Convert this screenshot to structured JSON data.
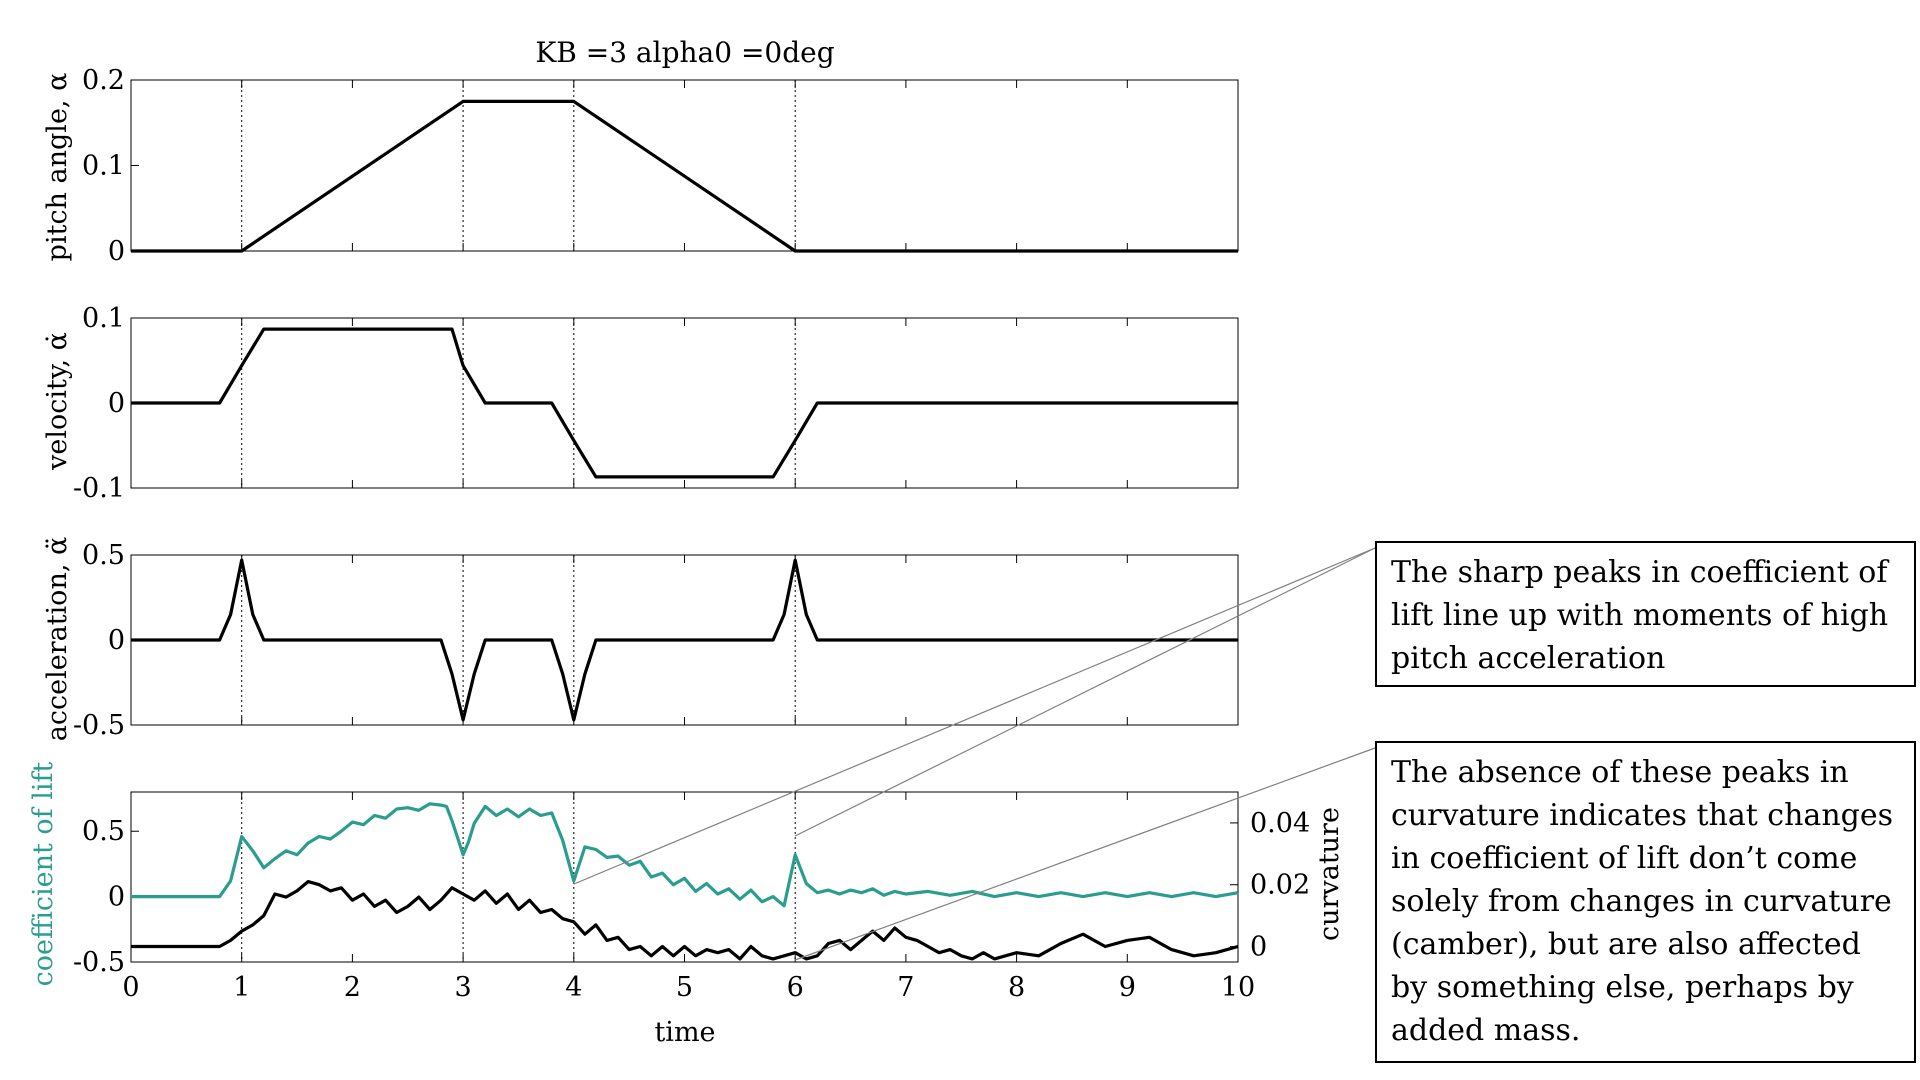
{
  "chart_data": [
    {
      "type": "line",
      "title": "KB =3 alpha0 =0deg",
      "ylabel": "pitch angle, α",
      "xlim": [
        0,
        10
      ],
      "ylim": [
        0,
        0.2
      ],
      "yticks": [
        "0",
        "0.1",
        "0.2"
      ],
      "series": [
        {
          "x": [
            0,
            1,
            3,
            4,
            6,
            10
          ],
          "values": [
            0,
            0,
            0.175,
            0.175,
            0,
            0
          ],
          "color": "#000000"
        }
      ]
    },
    {
      "type": "line",
      "ylabel": "velocity, α̇",
      "xlim": [
        0,
        10
      ],
      "ylim": [
        -0.1,
        0.1
      ],
      "yticks": [
        "-0.1",
        "0",
        "0.1"
      ],
      "series": [
        {
          "x": [
            0,
            0.8,
            1,
            1.2,
            2.9,
            3,
            3.2,
            3.8,
            4,
            4.2,
            5.8,
            6,
            6.2,
            10
          ],
          "values": [
            0,
            0,
            0.044,
            0.087,
            0.087,
            0.044,
            0,
            0,
            -0.044,
            -0.087,
            -0.087,
            -0.044,
            0,
            0
          ],
          "color": "#000000"
        }
      ]
    },
    {
      "type": "line",
      "ylabel": "acceleration, α̈",
      "xlim": [
        0,
        10
      ],
      "ylim": [
        -0.5,
        0.5
      ],
      "yticks": [
        "-0.5",
        "0",
        "0.5"
      ],
      "series": [
        {
          "x": [
            0,
            0.8,
            0.9,
            1,
            1.1,
            1.2,
            2.8,
            2.9,
            3,
            3.1,
            3.2,
            3.8,
            3.9,
            4,
            4.1,
            4.2,
            5.8,
            5.9,
            6,
            6.1,
            6.2,
            10
          ],
          "values": [
            0,
            0,
            0.15,
            0.47,
            0.15,
            0,
            0,
            -0.2,
            -0.47,
            -0.2,
            0,
            0,
            -0.2,
            -0.47,
            -0.2,
            0,
            0,
            0.15,
            0.47,
            0.15,
            0,
            0
          ],
          "color": "#000000"
        }
      ]
    },
    {
      "type": "line",
      "xlabel": "time",
      "ylabel": "coefficient of lift",
      "ylabel_right": "curvature",
      "xlim": [
        0,
        10
      ],
      "ylim": [
        -0.5,
        0.8
      ],
      "ylim_right": [
        -0.005,
        0.05
      ],
      "yticks": [
        "-0.5",
        "0",
        "0.5"
      ],
      "yticks_right": [
        "0",
        "0.02",
        "0.04"
      ],
      "xticks": [
        "0",
        "1",
        "2",
        "3",
        "4",
        "5",
        "6",
        "7",
        "8",
        "9",
        "10"
      ],
      "series": [
        {
          "axis": "left",
          "color": "#2a9d8f",
          "x": [
            0,
            0.8,
            0.9,
            1,
            1.1,
            1.2,
            1.3,
            1.4,
            1.5,
            1.6,
            1.7,
            1.8,
            1.9,
            2,
            2.1,
            2.2,
            2.3,
            2.4,
            2.5,
            2.6,
            2.7,
            2.8,
            2.85,
            2.9,
            2.95,
            3,
            3.05,
            3.1,
            3.2,
            3.3,
            3.4,
            3.5,
            3.6,
            3.7,
            3.8,
            3.9,
            4,
            4.1,
            4.2,
            4.3,
            4.4,
            4.5,
            4.6,
            4.7,
            4.8,
            4.9,
            5,
            5.1,
            5.2,
            5.3,
            5.4,
            5.5,
            5.6,
            5.7,
            5.8,
            5.9,
            6,
            6.1,
            6.2,
            6.3,
            6.4,
            6.5,
            6.6,
            6.7,
            6.8,
            6.9,
            7,
            7.2,
            7.4,
            7.6,
            7.8,
            8,
            8.2,
            8.4,
            8.6,
            8.8,
            9,
            9.2,
            9.4,
            9.6,
            9.8,
            10
          ],
          "values": [
            0,
            0,
            0.12,
            0.46,
            0.35,
            0.22,
            0.29,
            0.35,
            0.32,
            0.41,
            0.46,
            0.44,
            0.5,
            0.57,
            0.55,
            0.62,
            0.6,
            0.67,
            0.68,
            0.66,
            0.71,
            0.7,
            0.69,
            0.58,
            0.45,
            0.32,
            0.42,
            0.56,
            0.69,
            0.62,
            0.67,
            0.61,
            0.67,
            0.62,
            0.64,
            0.43,
            0.12,
            0.38,
            0.36,
            0.3,
            0.31,
            0.24,
            0.27,
            0.15,
            0.18,
            0.09,
            0.14,
            0.04,
            0.1,
            0.02,
            0.06,
            -0.02,
            0.05,
            -0.04,
            0.0,
            -0.07,
            0.32,
            0.1,
            0.03,
            0.05,
            0.02,
            0.05,
            0.03,
            0.06,
            0.01,
            0.04,
            0.02,
            0.04,
            0.01,
            0.04,
            0.0,
            0.03,
            0.0,
            0.03,
            0.0,
            0.03,
            0.0,
            0.03,
            0.0,
            0.03,
            0.0,
            0.03
          ]
        },
        {
          "axis": "right",
          "color": "#000000",
          "x": [
            0,
            0.8,
            0.9,
            1,
            1.1,
            1.2,
            1.3,
            1.4,
            1.5,
            1.6,
            1.7,
            1.8,
            1.9,
            2,
            2.1,
            2.2,
            2.3,
            2.4,
            2.5,
            2.6,
            2.7,
            2.8,
            2.9,
            3,
            3.1,
            3.2,
            3.3,
            3.4,
            3.5,
            3.6,
            3.7,
            3.8,
            3.9,
            4,
            4.1,
            4.2,
            4.3,
            4.4,
            4.5,
            4.6,
            4.7,
            4.8,
            4.9,
            5,
            5.1,
            5.2,
            5.3,
            5.4,
            5.5,
            5.6,
            5.7,
            5.8,
            5.9,
            6,
            6.1,
            6.2,
            6.3,
            6.4,
            6.5,
            6.6,
            6.7,
            6.8,
            6.9,
            7,
            7.1,
            7.2,
            7.3,
            7.4,
            7.5,
            7.6,
            7.7,
            7.8,
            7.9,
            8,
            8.2,
            8.4,
            8.6,
            8.8,
            9,
            9.2,
            9.4,
            9.6,
            9.8,
            10
          ],
          "values": [
            0.0,
            0.0,
            0.002,
            0.005,
            0.007,
            0.01,
            0.017,
            0.016,
            0.018,
            0.021,
            0.02,
            0.018,
            0.019,
            0.015,
            0.017,
            0.013,
            0.015,
            0.011,
            0.013,
            0.016,
            0.012,
            0.015,
            0.019,
            0.017,
            0.015,
            0.018,
            0.014,
            0.017,
            0.012,
            0.015,
            0.011,
            0.012,
            0.009,
            0.008,
            0.004,
            0.007,
            0.002,
            0.003,
            -0.001,
            0.0,
            -0.003,
            0.0,
            -0.003,
            0.0,
            -0.003,
            -0.001,
            -0.002,
            -0.001,
            -0.004,
            0.0,
            -0.003,
            -0.004,
            -0.003,
            -0.002,
            -0.004,
            -0.003,
            0.001,
            0.002,
            -0.001,
            0.002,
            0.005,
            0.002,
            0.006,
            0.003,
            0.002,
            0.0,
            -0.002,
            -0.001,
            -0.003,
            -0.004,
            -0.002,
            -0.004,
            -0.003,
            -0.002,
            -0.003,
            0.001,
            0.004,
            0.0,
            0.002,
            0.003,
            -0.001,
            -0.003,
            -0.002,
            0.0
          ]
        }
      ]
    }
  ],
  "annotations": [
    {
      "text": "The sharp peaks in coefficient of lift line up with moments of high pitch acceleration"
    },
    {
      "text": "The absence of these peaks in curvature indicates that changes in coefficient of lift don’t come solely from changes in curvature (camber), but are also affected by something else, perhaps by added mass."
    }
  ]
}
